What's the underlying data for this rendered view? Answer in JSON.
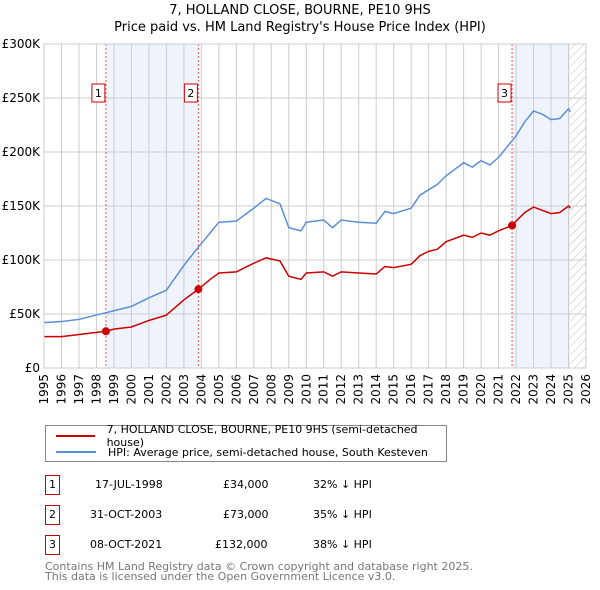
{
  "chart_data": {
    "type": "line",
    "title": "7, HOLLAND CLOSE, BOURNE, PE10 9HS",
    "subtitle": "Price paid vs. HM Land Registry's House Price Index (HPI)",
    "xlim": [
      1995,
      2026
    ],
    "ylim": [
      0,
      300000
    ],
    "x_ticks": [
      "1995",
      "1996",
      "1997",
      "1998",
      "1999",
      "2000",
      "2001",
      "2002",
      "2003",
      "2004",
      "2005",
      "2006",
      "2007",
      "2008",
      "2009",
      "2010",
      "2011",
      "2012",
      "2013",
      "2014",
      "2015",
      "2016",
      "2017",
      "2018",
      "2019",
      "2020",
      "2021",
      "2022",
      "2023",
      "2024",
      "2025",
      "2026"
    ],
    "y_ticks": [
      {
        "v": 0,
        "label": "£0"
      },
      {
        "v": 50000,
        "label": "£50K"
      },
      {
        "v": 100000,
        "label": "£100K"
      },
      {
        "v": 150000,
        "label": "£150K"
      },
      {
        "v": 200000,
        "label": "£200K"
      },
      {
        "v": 250000,
        "label": "£250K"
      },
      {
        "v": 300000,
        "label": "£300K"
      }
    ],
    "grid": true,
    "series": [
      {
        "name": "7, HOLLAND CLOSE, BOURNE, PE10 9HS (semi-detached house)",
        "color": "#cc0000",
        "x": [
          1995,
          1996,
          1997,
          1998,
          1998.54,
          1999,
          2000,
          2001,
          2002,
          2003,
          2003.83,
          2004.5,
          2005,
          2006,
          2007,
          2007.7,
          2008.5,
          2009,
          2009.7,
          2010,
          2011,
          2011.5,
          2012,
          2013,
          2014,
          2014.5,
          2015,
          2016,
          2016.5,
          2017,
          2017.5,
          2018,
          2019,
          2019.5,
          2020,
          2020.5,
          2021,
          2021.77,
          2022,
          2022.5,
          2023,
          2023.5,
          2024,
          2024.5,
          2025,
          2025.1
        ],
        "y": [
          29000,
          29000,
          31000,
          33000,
          34000,
          36000,
          38000,
          44000,
          49000,
          63000,
          73000,
          82000,
          88000,
          89000,
          97000,
          102000,
          99000,
          85000,
          82000,
          88000,
          89000,
          85000,
          89000,
          88000,
          87000,
          94000,
          93000,
          96000,
          104000,
          108000,
          110000,
          117000,
          123000,
          121000,
          125000,
          123000,
          127000,
          132000,
          136000,
          144000,
          149000,
          146000,
          143000,
          144000,
          150000,
          148000
        ]
      },
      {
        "name": "HPI: Average price, semi-detached house, South Kesteven",
        "color": "#5b8fd4",
        "x": [
          1995,
          1996,
          1997,
          1998,
          1999,
          2000,
          2001,
          2002,
          2003,
          2003.83,
          2004.5,
          2005,
          2006,
          2007,
          2007.7,
          2008.5,
          2009,
          2009.7,
          2010,
          2011,
          2011.5,
          2012,
          2013,
          2014,
          2014.5,
          2015,
          2016,
          2016.5,
          2017,
          2017.5,
          2018,
          2019,
          2019.5,
          2020,
          2020.5,
          2021,
          2021.5,
          2022,
          2022.5,
          2023,
          2023.5,
          2024,
          2024.5,
          2025,
          2025.1
        ],
        "y": [
          42000,
          43000,
          45000,
          49000,
          53000,
          57000,
          65000,
          72000,
          95000,
          112000,
          125000,
          135000,
          136000,
          148000,
          157000,
          152000,
          130000,
          127000,
          135000,
          137000,
          130000,
          137000,
          135000,
          134000,
          145000,
          143000,
          148000,
          160000,
          165000,
          170000,
          178000,
          190000,
          186000,
          192000,
          188000,
          195000,
          205000,
          215000,
          228000,
          238000,
          235000,
          230000,
          231000,
          240000,
          237000
        ]
      }
    ],
    "sales": [
      {
        "n": "1",
        "x": 1998.54,
        "y": 34000,
        "date": "17-JUL-1998",
        "price": "£34,000",
        "diff": "32% ↓ HPI"
      },
      {
        "n": "2",
        "x": 2003.83,
        "y": 73000,
        "date": "31-OCT-2003",
        "price": "£73,000",
        "diff": "35% ↓ HPI"
      },
      {
        "n": "3",
        "x": 2021.77,
        "y": 132000,
        "date": "08-OCT-2021",
        "price": "£132,000",
        "diff": "38% ↓ HPI"
      }
    ],
    "shaded": [
      [
        1998.54,
        2003.83
      ],
      [
        2021.77,
        2025.1
      ]
    ],
    "forecast_from": 2025.1,
    "legend_position": "bottom"
  },
  "footer": [
    "Contains HM Land Registry data © Crown copyright and database right 2025.",
    "This data is licensed under the Open Government Licence v3.0."
  ]
}
